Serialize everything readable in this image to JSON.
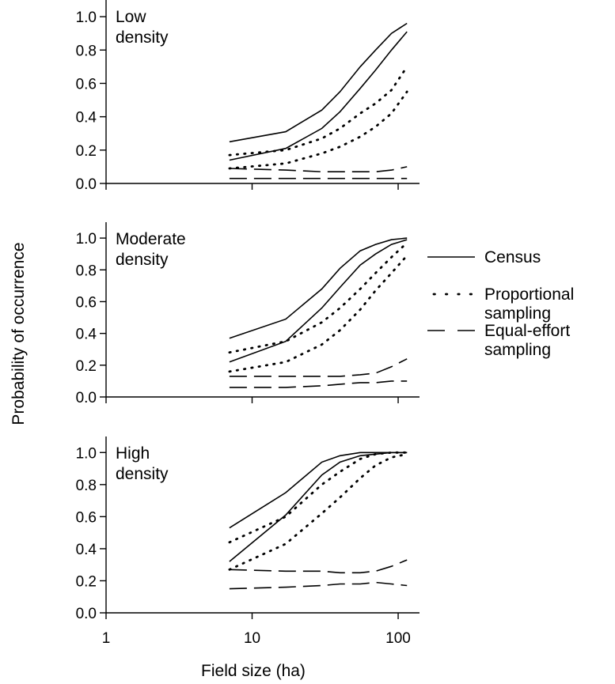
{
  "chart_data": [
    {
      "type": "line",
      "panel_label": [
        "Low",
        "density"
      ],
      "x_scale": "log",
      "xlim": [
        1,
        140
      ],
      "ylim": [
        0,
        1.1
      ],
      "yticks": [
        "0.0",
        "0.2",
        "0.4",
        "0.6",
        "0.8",
        "1.0"
      ],
      "series": [
        {
          "group": "Census",
          "style": "solid",
          "x": [
            7,
            17,
            30,
            40,
            55,
            70,
            90,
            115
          ],
          "y": [
            0.25,
            0.31,
            0.44,
            0.55,
            0.7,
            0.8,
            0.9,
            0.96
          ]
        },
        {
          "group": "Census",
          "style": "solid",
          "x": [
            7,
            17,
            30,
            40,
            55,
            70,
            90,
            115
          ],
          "y": [
            0.14,
            0.21,
            0.33,
            0.43,
            0.57,
            0.68,
            0.8,
            0.91
          ]
        },
        {
          "group": "Proportional sampling",
          "style": "dotted",
          "x": [
            7,
            17,
            30,
            40,
            55,
            70,
            90,
            115
          ],
          "y": [
            0.17,
            0.2,
            0.27,
            0.33,
            0.42,
            0.48,
            0.56,
            0.7
          ]
        },
        {
          "group": "Proportional sampling",
          "style": "dotted",
          "x": [
            7,
            17,
            30,
            40,
            55,
            70,
            90,
            115
          ],
          "y": [
            0.09,
            0.12,
            0.18,
            0.22,
            0.28,
            0.34,
            0.42,
            0.55
          ]
        },
        {
          "group": "Equal-effort sampling",
          "style": "dashed",
          "x": [
            7,
            17,
            30,
            40,
            55,
            70,
            90,
            115
          ],
          "y": [
            0.09,
            0.08,
            0.07,
            0.07,
            0.07,
            0.07,
            0.08,
            0.1
          ]
        },
        {
          "group": "Equal-effort sampling",
          "style": "dashed",
          "x": [
            7,
            17,
            30,
            40,
            55,
            70,
            90,
            115
          ],
          "y": [
            0.03,
            0.03,
            0.03,
            0.03,
            0.03,
            0.03,
            0.03,
            0.03
          ]
        }
      ]
    },
    {
      "type": "line",
      "panel_label": [
        "Moderate",
        "density"
      ],
      "x_scale": "log",
      "xlim": [
        1,
        140
      ],
      "ylim": [
        0,
        1.1
      ],
      "yticks": [
        "0.0",
        "0.2",
        "0.4",
        "0.6",
        "0.8",
        "1.0"
      ],
      "series": [
        {
          "group": "Census",
          "style": "solid",
          "x": [
            7,
            17,
            30,
            40,
            55,
            70,
            90,
            115
          ],
          "y": [
            0.37,
            0.49,
            0.68,
            0.81,
            0.92,
            0.96,
            0.99,
            1.0
          ]
        },
        {
          "group": "Census",
          "style": "solid",
          "x": [
            7,
            17,
            30,
            40,
            55,
            70,
            90,
            115
          ],
          "y": [
            0.22,
            0.35,
            0.56,
            0.69,
            0.83,
            0.9,
            0.96,
            0.99
          ]
        },
        {
          "group": "Proportional sampling",
          "style": "dotted",
          "x": [
            7,
            17,
            30,
            40,
            55,
            70,
            90,
            115
          ],
          "y": [
            0.28,
            0.35,
            0.47,
            0.56,
            0.68,
            0.78,
            0.88,
            0.97
          ]
        },
        {
          "group": "Proportional sampling",
          "style": "dotted",
          "x": [
            7,
            17,
            30,
            40,
            55,
            70,
            90,
            115
          ],
          "y": [
            0.16,
            0.22,
            0.33,
            0.42,
            0.55,
            0.67,
            0.78,
            0.89
          ]
        },
        {
          "group": "Equal-effort sampling",
          "style": "dashed",
          "x": [
            7,
            17,
            30,
            40,
            55,
            70,
            90,
            115
          ],
          "y": [
            0.13,
            0.13,
            0.13,
            0.13,
            0.14,
            0.15,
            0.19,
            0.24
          ]
        },
        {
          "group": "Equal-effort sampling",
          "style": "dashed",
          "x": [
            7,
            17,
            30,
            40,
            55,
            70,
            90,
            115
          ],
          "y": [
            0.06,
            0.06,
            0.07,
            0.08,
            0.09,
            0.09,
            0.1,
            0.1
          ]
        }
      ]
    },
    {
      "type": "line",
      "panel_label": [
        "High",
        "density"
      ],
      "x_scale": "log",
      "xlim": [
        1,
        140
      ],
      "ylim": [
        0,
        1.1
      ],
      "yticks": [
        "0.0",
        "0.2",
        "0.4",
        "0.6",
        "0.8",
        "1.0"
      ],
      "xticks": [
        1,
        10,
        100
      ],
      "xlabel": "Field size (ha)",
      "series": [
        {
          "group": "Census",
          "style": "solid",
          "x": [
            7,
            17,
            30,
            40,
            55,
            70,
            90,
            115
          ],
          "y": [
            0.53,
            0.75,
            0.94,
            0.98,
            1.0,
            1.0,
            1.0,
            1.0
          ]
        },
        {
          "group": "Census",
          "style": "solid",
          "x": [
            7,
            17,
            30,
            40,
            55,
            70,
            90,
            115
          ],
          "y": [
            0.32,
            0.61,
            0.86,
            0.94,
            0.98,
            0.99,
            1.0,
            1.0
          ]
        },
        {
          "group": "Proportional sampling",
          "style": "dotted",
          "x": [
            7,
            17,
            30,
            40,
            55,
            70,
            90,
            115
          ],
          "y": [
            0.44,
            0.6,
            0.8,
            0.88,
            0.96,
            0.99,
            1.0,
            1.0
          ]
        },
        {
          "group": "Proportional sampling",
          "style": "dotted",
          "x": [
            7,
            17,
            30,
            40,
            55,
            70,
            90,
            115
          ],
          "y": [
            0.27,
            0.43,
            0.62,
            0.72,
            0.84,
            0.92,
            0.97,
            0.99
          ]
        },
        {
          "group": "Equal-effort sampling",
          "style": "dashed",
          "x": [
            7,
            17,
            30,
            40,
            55,
            70,
            90,
            115
          ],
          "y": [
            0.27,
            0.26,
            0.26,
            0.25,
            0.25,
            0.26,
            0.29,
            0.33
          ]
        },
        {
          "group": "Equal-effort sampling",
          "style": "dashed",
          "x": [
            7,
            17,
            30,
            40,
            55,
            70,
            90,
            115
          ],
          "y": [
            0.15,
            0.16,
            0.17,
            0.18,
            0.18,
            0.19,
            0.18,
            0.17
          ]
        }
      ]
    }
  ],
  "ylabel": "Probability of occurrence",
  "legend": [
    {
      "style": "solid",
      "lines": [
        "Census"
      ]
    },
    {
      "style": "dotted",
      "lines": [
        "Proportional",
        "sampling"
      ]
    },
    {
      "style": "dashed",
      "lines": [
        "Equal-effort",
        "sampling"
      ]
    }
  ],
  "colors": {
    "ink": "#000000",
    "background": "#ffffff"
  }
}
